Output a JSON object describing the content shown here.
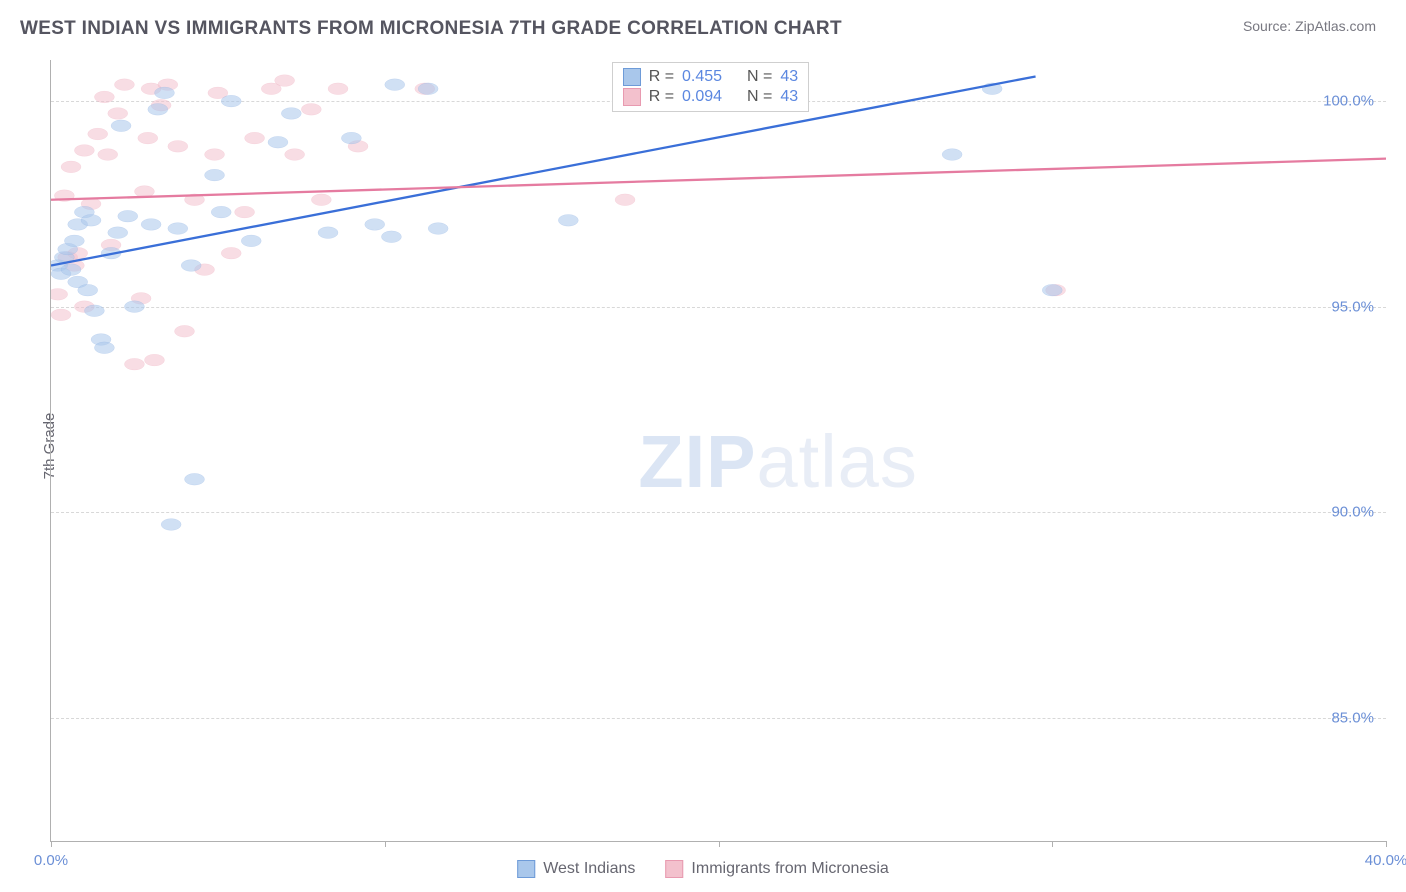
{
  "header": {
    "title": "WEST INDIAN VS IMMIGRANTS FROM MICRONESIA 7TH GRADE CORRELATION CHART",
    "source_prefix": "Source: ",
    "source_name": "ZipAtlas.com"
  },
  "chart": {
    "type": "scatter",
    "ylabel": "7th Grade",
    "xlim": [
      0,
      40
    ],
    "ylim": [
      82,
      101
    ],
    "xtick_positions": [
      0,
      10,
      20,
      30,
      40
    ],
    "xtick_labels": [
      "0.0%",
      "",
      "",
      "",
      "40.0%"
    ],
    "ytick_positions": [
      85,
      90,
      95,
      100
    ],
    "ytick_labels": [
      "85.0%",
      "90.0%",
      "95.0%",
      "100.0%"
    ],
    "grid_color": "#d8d8d8",
    "axis_color": "#b0b0b0",
    "background_color": "#ffffff",
    "point_radius": 9,
    "point_opacity": 0.55,
    "line_width": 2.3,
    "watermark": {
      "text_bold": "ZIP",
      "text_light": "atlas"
    },
    "series": [
      {
        "name": "West Indians",
        "color_fill": "#a9c7eb",
        "color_stroke": "#6e9bd8",
        "color_line": "#3a6fd8",
        "regression": {
          "x1": 0,
          "y1": 96.0,
          "x2": 29.5,
          "y2": 100.6
        },
        "stats": {
          "r": "0.455",
          "n": "43"
        },
        "points": [
          [
            0.2,
            96.0
          ],
          [
            0.3,
            95.8
          ],
          [
            0.4,
            96.2
          ],
          [
            0.5,
            96.4
          ],
          [
            0.6,
            95.9
          ],
          [
            0.7,
            96.6
          ],
          [
            0.8,
            95.6
          ],
          [
            0.8,
            97.0
          ],
          [
            1.0,
            97.3
          ],
          [
            1.1,
            95.4
          ],
          [
            1.2,
            97.1
          ],
          [
            1.3,
            94.9
          ],
          [
            1.5,
            94.2
          ],
          [
            1.6,
            94.0
          ],
          [
            1.8,
            96.3
          ],
          [
            2.0,
            96.8
          ],
          [
            2.1,
            99.4
          ],
          [
            2.3,
            97.2
          ],
          [
            2.5,
            95.0
          ],
          [
            3.0,
            97.0
          ],
          [
            3.2,
            99.8
          ],
          [
            3.4,
            100.2
          ],
          [
            3.6,
            89.7
          ],
          [
            3.8,
            96.9
          ],
          [
            4.2,
            96.0
          ],
          [
            4.3,
            90.8
          ],
          [
            4.9,
            98.2
          ],
          [
            5.1,
            97.3
          ],
          [
            5.4,
            100.0
          ],
          [
            6.0,
            96.6
          ],
          [
            6.8,
            99.0
          ],
          [
            7.2,
            99.7
          ],
          [
            8.3,
            96.8
          ],
          [
            9.0,
            99.1
          ],
          [
            9.7,
            97.0
          ],
          [
            10.3,
            100.4
          ],
          [
            10.2,
            96.7
          ],
          [
            11.3,
            100.3
          ],
          [
            11.6,
            96.9
          ],
          [
            15.5,
            97.1
          ],
          [
            27.0,
            98.7
          ],
          [
            28.2,
            100.3
          ],
          [
            30.0,
            95.4
          ]
        ]
      },
      {
        "name": "Immigrants from Micronesia",
        "color_fill": "#f3c1cd",
        "color_stroke": "#e89ab0",
        "color_line": "#e57ba0",
        "regression": {
          "x1": 0,
          "y1": 97.6,
          "x2": 40,
          "y2": 98.6
        },
        "stats": {
          "r": "0.094",
          "n": "43"
        },
        "points": [
          [
            0.2,
            95.3
          ],
          [
            0.3,
            94.8
          ],
          [
            0.4,
            97.7
          ],
          [
            0.5,
            96.2
          ],
          [
            0.6,
            98.4
          ],
          [
            0.7,
            96.0
          ],
          [
            0.8,
            96.3
          ],
          [
            1.0,
            98.8
          ],
          [
            1.0,
            95.0
          ],
          [
            1.2,
            97.5
          ],
          [
            1.4,
            99.2
          ],
          [
            1.6,
            100.1
          ],
          [
            1.7,
            98.7
          ],
          [
            1.8,
            96.5
          ],
          [
            2.0,
            99.7
          ],
          [
            2.2,
            100.4
          ],
          [
            2.5,
            93.6
          ],
          [
            2.8,
            97.8
          ],
          [
            2.9,
            99.1
          ],
          [
            2.7,
            95.2
          ],
          [
            3.1,
            93.7
          ],
          [
            3.3,
            99.9
          ],
          [
            3.5,
            100.4
          ],
          [
            3.8,
            98.9
          ],
          [
            4.0,
            94.4
          ],
          [
            4.3,
            97.6
          ],
          [
            4.6,
            95.9
          ],
          [
            4.9,
            98.7
          ],
          [
            5.0,
            100.2
          ],
          [
            5.4,
            96.3
          ],
          [
            5.8,
            97.3
          ],
          [
            6.1,
            99.1
          ],
          [
            6.6,
            100.3
          ],
          [
            7.0,
            100.5
          ],
          [
            7.3,
            98.7
          ],
          [
            7.8,
            99.8
          ],
          [
            8.1,
            97.6
          ],
          [
            8.6,
            100.3
          ],
          [
            9.2,
            98.9
          ],
          [
            11.2,
            100.3
          ],
          [
            17.2,
            97.6
          ],
          [
            30.1,
            95.4
          ],
          [
            3.0,
            100.3
          ]
        ]
      }
    ],
    "legend_top": {
      "r_label": "R =",
      "n_label": "N ="
    },
    "legend_bottom": [
      {
        "label": "West Indians",
        "fill": "#a9c7eb",
        "stroke": "#6e9bd8"
      },
      {
        "label": "Immigrants from Micronesia",
        "fill": "#f3c1cd",
        "stroke": "#e89ab0"
      }
    ]
  }
}
